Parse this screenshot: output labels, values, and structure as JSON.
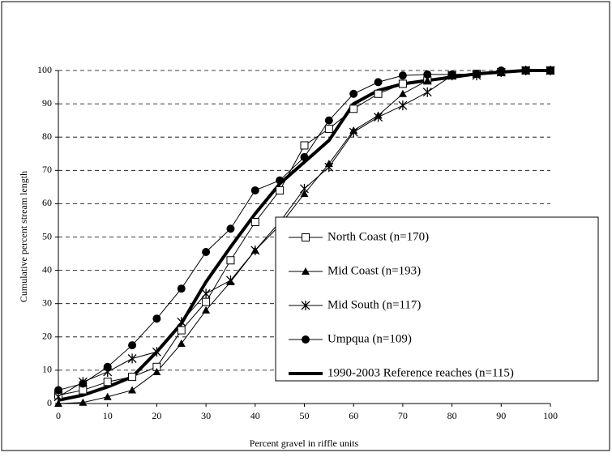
{
  "chart_data": {
    "type": "line",
    "x_label": "Percent gravel in riffle units",
    "y_label": "Cumulative percent stream length",
    "x": [
      0,
      5,
      10,
      15,
      20,
      25,
      30,
      35,
      40,
      45,
      50,
      55,
      60,
      65,
      70,
      75,
      80,
      85,
      90,
      95,
      100
    ],
    "xlim": [
      0,
      100
    ],
    "xticks": [
      0,
      10,
      20,
      30,
      40,
      50,
      60,
      70,
      80,
      90,
      100
    ],
    "ylim": [
      0,
      100
    ],
    "yticks": [
      0,
      10,
      20,
      30,
      40,
      50,
      60,
      70,
      80,
      90,
      100
    ],
    "grid": true,
    "series": [
      {
        "name": "North Coast (n=170)",
        "color": "#000000",
        "marker": "square-open",
        "line_width": 1,
        "values": [
          2.5,
          4,
          6.5,
          8,
          11,
          22,
          30.5,
          43,
          54.5,
          64,
          77.5,
          82.5,
          88.5,
          93,
          96,
          97,
          98.5,
          99,
          99.5,
          100,
          100
        ]
      },
      {
        "name": "Mid Coast (n=193)",
        "color": "#000000",
        "marker": "triangle",
        "line_width": 1,
        "values": [
          0,
          0.3,
          2,
          4,
          9.5,
          18,
          28,
          36.5,
          46,
          53.5,
          63,
          72,
          82,
          86.5,
          93,
          97,
          98.5,
          99,
          99.5,
          100,
          100
        ]
      },
      {
        "name": "Mid South (n=117)",
        "color": "#000000",
        "marker": "star",
        "line_width": 1,
        "values": [
          2,
          6.5,
          9.5,
          13.5,
          15.5,
          24.5,
          33,
          37,
          46,
          54.5,
          64.5,
          71,
          81.5,
          86,
          89.5,
          93.5,
          98.5,
          98.5,
          99.5,
          100,
          100
        ]
      },
      {
        "name": "Umpqua (n=109)",
        "color": "#000000",
        "marker": "circle",
        "line_width": 1,
        "values": [
          4,
          6,
          11,
          17.5,
          25.5,
          34.5,
          45.5,
          52.5,
          64,
          67,
          74,
          85,
          93,
          96.5,
          98.5,
          98.8,
          98.8,
          99,
          100,
          100,
          100
        ]
      },
      {
        "name": "1990-2003 Reference reaches (n=115)",
        "color": "#000000",
        "marker": "none",
        "line_width": 4,
        "values": [
          1,
          2.5,
          5,
          8,
          15.5,
          24,
          36.5,
          47,
          57,
          66,
          72.5,
          79,
          90,
          94,
          96,
          97,
          98,
          99,
          99.5,
          100,
          100
        ]
      }
    ]
  }
}
